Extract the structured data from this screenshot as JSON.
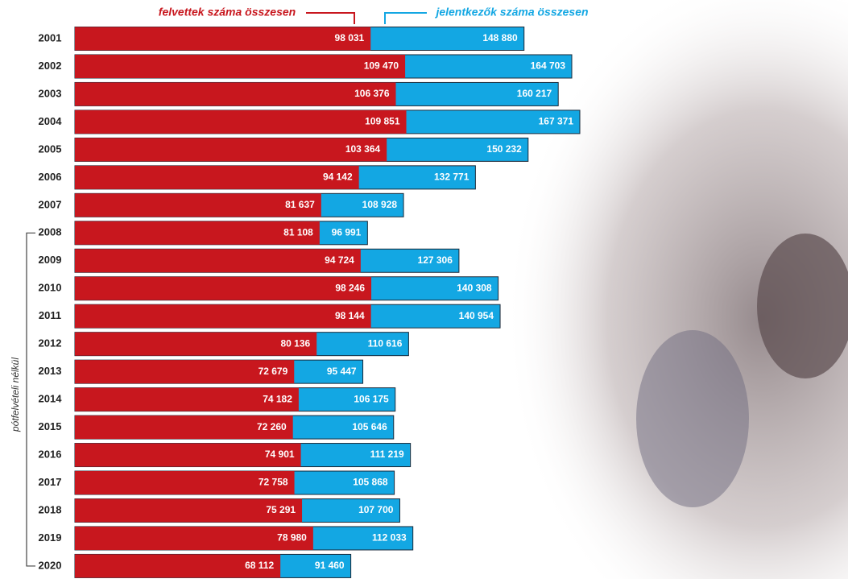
{
  "chart_data": {
    "type": "bar",
    "categories": [
      "2001",
      "2002",
      "2003",
      "2004",
      "2005",
      "2006",
      "2007",
      "2008",
      "2009",
      "2010",
      "2011",
      "2012",
      "2013",
      "2014",
      "2015",
      "2016",
      "2017",
      "2018",
      "2019",
      "2020"
    ],
    "series": [
      {
        "name": "felvettek száma összesen",
        "color": "#c8171e",
        "values": [
          98031,
          109470,
          106376,
          109851,
          103364,
          94142,
          81637,
          81108,
          94724,
          98246,
          98144,
          80136,
          72679,
          74182,
          72260,
          74901,
          72758,
          75291,
          78980,
          68112
        ],
        "value_labels": [
          "98 031",
          "109 470",
          "106 376",
          "109 851",
          "103 364",
          "94 142",
          "81 637",
          "81 108",
          "94 724",
          "98 246",
          "98 144",
          "80 136",
          "72 679",
          "74 182",
          "72 260",
          "74 901",
          "72 758",
          "75 291",
          "78 980",
          "68 112"
        ]
      },
      {
        "name": "jelentkezők száma összesen",
        "color": "#13a7e3",
        "values": [
          148880,
          164703,
          160217,
          167371,
          150232,
          132771,
          108928,
          96991,
          127306,
          140308,
          140954,
          110616,
          95447,
          106175,
          105646,
          111219,
          105868,
          107700,
          112033,
          91460
        ],
        "value_labels": [
          "148 880",
          "164 703",
          "160 217",
          "167 371",
          "150 232",
          "132 771",
          "108 928",
          "96 991",
          "127 306",
          "140 308",
          "140 954",
          "110 616",
          "95 447",
          "106 175",
          "105 646",
          "111 219",
          "105 868",
          "107 700",
          "112 033",
          "91 460"
        ]
      }
    ],
    "annotation": "pótfelvételi nélkül"
  }
}
